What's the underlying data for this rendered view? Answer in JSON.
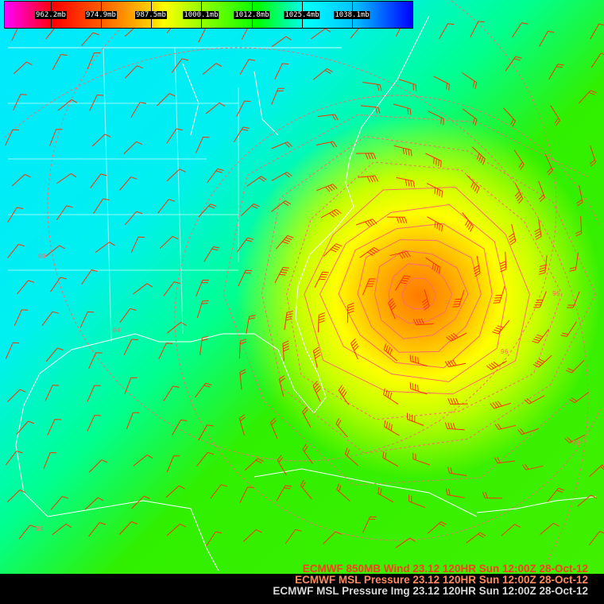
{
  "colorbar": {
    "labels": [
      "962.2mb",
      "974.9mb",
      "987.5mb",
      "1000.1mb",
      "1012.8mb",
      "1025.4mb",
      "1038.1mb"
    ],
    "colors": {
      "low": "#ff00ff",
      "high": "#0000ff"
    }
  },
  "map": {
    "low_center_color": "#ff8000",
    "contour_color": "#ff6a6a",
    "wind_barb_color": "#ff3000",
    "coastline_color": "#ffffff",
    "contour_labels": [
      "96",
      "96",
      "00",
      "00",
      "04",
      "08"
    ]
  },
  "footer": {
    "line1": "ECMWF 850MB Wind  23.12 120HR Sun 12:00Z 28-Oct-12",
    "line2": "ECMWF MSL Pressure  23.12 120HR Sun 12:00Z 28-Oct-12",
    "line3": "ECMWF MSL Pressure Img 23.12 120HR Sun 12:00Z 28-Oct-12"
  }
}
